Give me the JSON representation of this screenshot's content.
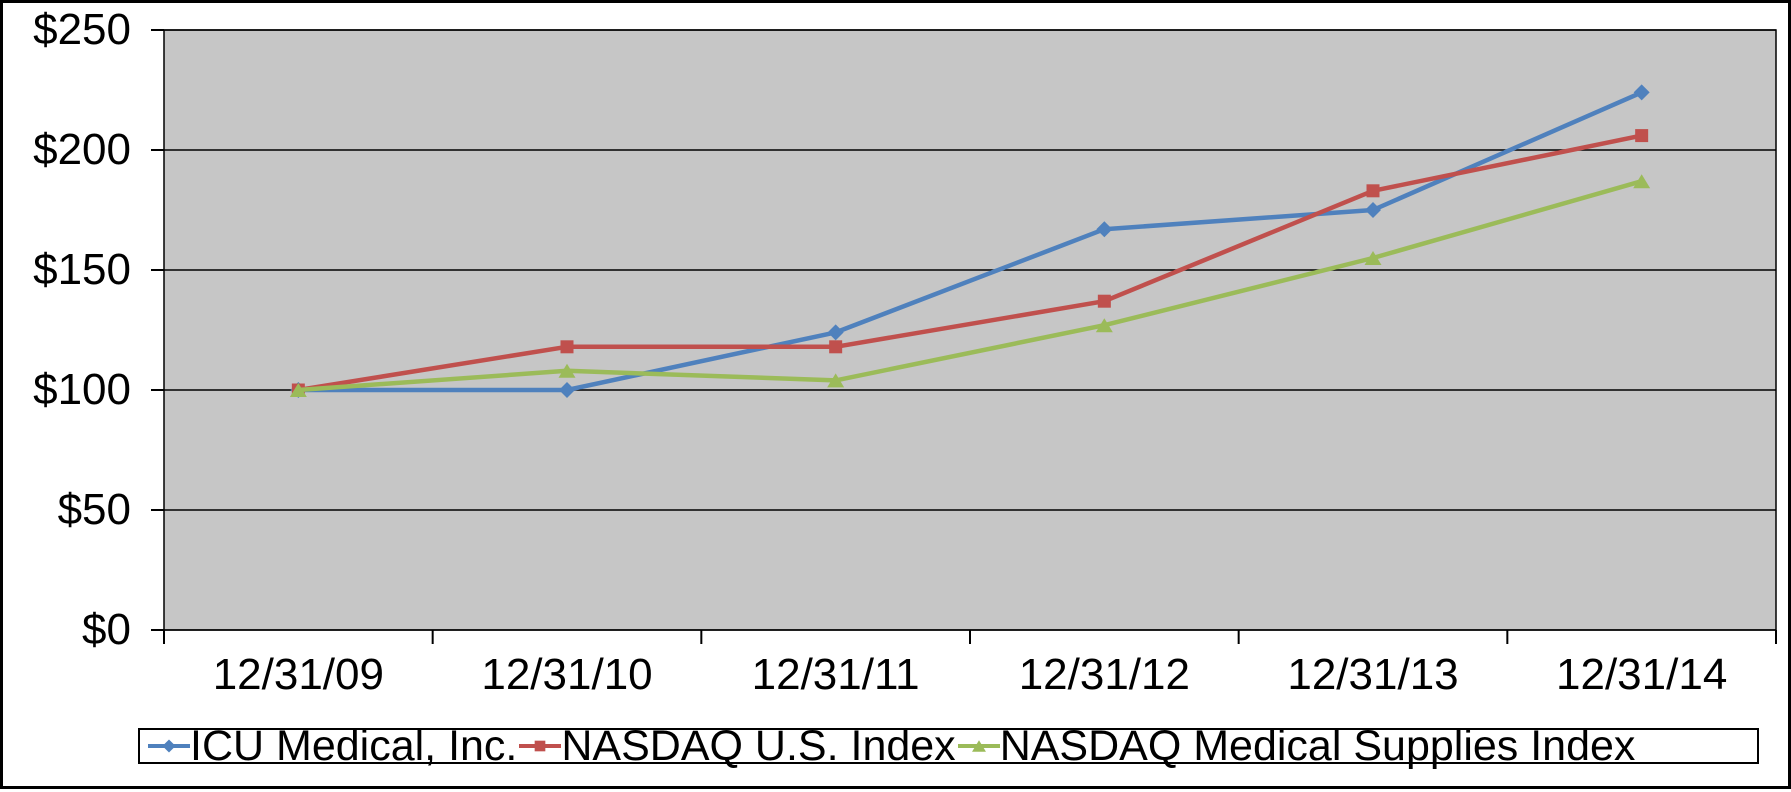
{
  "chart_data": {
    "type": "line",
    "title": "",
    "xlabel": "",
    "ylabel": "",
    "categories": [
      "12/31/09",
      "12/31/10",
      "12/31/11",
      "12/31/12",
      "12/31/13",
      "12/31/14"
    ],
    "series": [
      {
        "name": "ICU Medical, Inc.",
        "marker": "diamond",
        "color": "#4F81BD",
        "values": [
          100,
          100,
          124,
          167,
          175,
          224
        ]
      },
      {
        "name": "NASDAQ U.S. Index",
        "marker": "square",
        "color": "#C0504D",
        "values": [
          100,
          118,
          118,
          137,
          183,
          206
        ]
      },
      {
        "name": "NASDAQ Medical Supplies Index",
        "marker": "triangle",
        "color": "#9BBB59",
        "values": [
          100,
          108,
          104,
          127,
          155,
          187
        ]
      }
    ],
    "y_ticks": [
      {
        "label": "$250",
        "value": 250
      },
      {
        "label": "$200",
        "value": 200
      },
      {
        "label": "$150",
        "value": 150
      },
      {
        "label": "$100",
        "value": 100
      },
      {
        "label": "$50",
        "value": 50
      },
      {
        "label": "$0",
        "value": 0
      }
    ],
    "ylim": [
      0,
      250
    ],
    "grid": true,
    "legend_position": "bottom",
    "colors": {
      "plot_background": "#C6C6C6",
      "gridline": "#000000",
      "axis_text": "#000000",
      "border": "#000000"
    }
  }
}
